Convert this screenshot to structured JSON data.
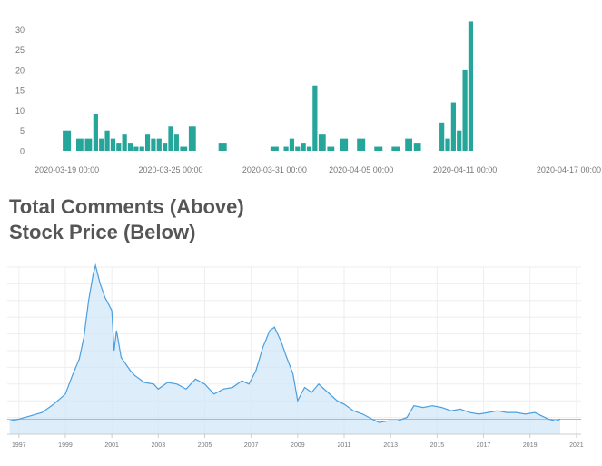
{
  "titles": {
    "line1": "Total Comments (Above)",
    "line2": "Stock Price (Below)"
  },
  "colors": {
    "bar": "#26a69a",
    "area_line": "#4a9fe0",
    "area_fill": "#cfe5f8",
    "grid": "#eeeeee",
    "text": "#777777",
    "title": "#555555"
  },
  "chart_data": [
    {
      "type": "bar",
      "x": [
        "2020-03-19",
        "2020-03-20",
        "2020-03-21",
        "2020-03-22",
        "2020-03-23",
        "2020-03-24",
        "2020-03-25",
        "2020-03-26",
        "2020-03-27",
        "2020-03-28",
        "2020-03-29",
        "2020-03-30",
        "2020-03-31",
        "2020-04-01",
        "2020-04-02",
        "2020-04-03",
        "2020-04-04",
        "2020-04-05",
        "2020-04-06",
        "2020-04-07",
        "2020-04-08",
        "2020-04-09",
        "2020-04-10",
        "2020-04-11",
        "2020-04-12",
        "2020-04-13",
        "2020-04-14",
        "2020-04-15",
        "2020-04-16",
        "2020-04-17"
      ],
      "x_tick_labels": [
        "2020-03-19 00:00",
        "2020-03-25 00:00",
        "2020-03-31 00:00",
        "2020-04-05 00:00",
        "2020-04-11 00:00",
        "2020-04-17 00:00"
      ],
      "x_tick_dates": [
        "2020-03-19",
        "2020-03-25",
        "2020-03-31",
        "2020-04-05",
        "2020-04-11",
        "2020-04-17"
      ],
      "y_ticks": [
        0,
        5,
        10,
        15,
        20,
        25,
        30
      ],
      "ylim": [
        0,
        33
      ],
      "x_domain": [
        "2020-03-18",
        "2020-04-18"
      ],
      "bars": [
        [
          "2020-03-19",
          5
        ],
        [
          "2020-03-20",
          3
        ],
        [
          "2020-03-20",
          3
        ],
        [
          "2020-03-21",
          9
        ],
        [
          "2020-03-21",
          3
        ],
        [
          "2020-03-21",
          5
        ],
        [
          "2020-03-22",
          3
        ],
        [
          "2020-03-22",
          2
        ],
        [
          "2020-03-22",
          4
        ],
        [
          "2020-03-23",
          2
        ],
        [
          "2020-03-23",
          1
        ],
        [
          "2020-03-23",
          1
        ],
        [
          "2020-03-24",
          4
        ],
        [
          "2020-03-24",
          3
        ],
        [
          "2020-03-24",
          3
        ],
        [
          "2020-03-25",
          2
        ],
        [
          "2020-03-25",
          6
        ],
        [
          "2020-03-25",
          4
        ],
        [
          "2020-03-26",
          1
        ],
        [
          "2020-03-26",
          6
        ],
        [
          "2020-03-28",
          2
        ],
        [
          "2020-03-31",
          1
        ],
        [
          "2020-04-01",
          1
        ],
        [
          "2020-04-01",
          3
        ],
        [
          "2020-04-01",
          1
        ],
        [
          "2020-04-02",
          2
        ],
        [
          "2020-04-02",
          1
        ],
        [
          "2020-04-02",
          16
        ],
        [
          "2020-04-03",
          4
        ],
        [
          "2020-04-03",
          1
        ],
        [
          "2020-04-04",
          3
        ],
        [
          "2020-04-05",
          3
        ],
        [
          "2020-04-06",
          1
        ],
        [
          "2020-04-07",
          1
        ],
        [
          "2020-04-08",
          3
        ],
        [
          "2020-04-08",
          2
        ],
        [
          "2020-04-10",
          7
        ],
        [
          "2020-04-10",
          3
        ],
        [
          "2020-04-10",
          12
        ],
        [
          "2020-04-11",
          5
        ],
        [
          "2020-04-11",
          20
        ],
        [
          "2020-04-11",
          32
        ]
      ],
      "grid": false
    },
    {
      "type": "area",
      "x_tick_labels": [
        "1997",
        "1999",
        "2001",
        "2003",
        "2005",
        "2007",
        "2009",
        "2011",
        "2013",
        "2015",
        "2017",
        "2019",
        "2021"
      ],
      "xlim": [
        1996.5,
        2021.2
      ],
      "ylim": [
        0,
        100
      ],
      "y_axis_labels": false,
      "grid": true,
      "baseline": 9,
      "points": [
        [
          1996.6,
          8
        ],
        [
          1997.0,
          9
        ],
        [
          1997.5,
          11
        ],
        [
          1998.0,
          13
        ],
        [
          1998.5,
          18
        ],
        [
          1999.0,
          24
        ],
        [
          1999.3,
          35
        ],
        [
          1999.6,
          45
        ],
        [
          1999.8,
          58
        ],
        [
          2000.0,
          80
        ],
        [
          2000.2,
          96
        ],
        [
          2000.3,
          101
        ],
        [
          2000.5,
          90
        ],
        [
          2000.7,
          82
        ],
        [
          2001.0,
          74
        ],
        [
          2001.1,
          50
        ],
        [
          2001.2,
          62
        ],
        [
          2001.4,
          46
        ],
        [
          2001.8,
          38
        ],
        [
          2002.0,
          35
        ],
        [
          2002.4,
          31
        ],
        [
          2002.8,
          30
        ],
        [
          2003.0,
          27
        ],
        [
          2003.4,
          31
        ],
        [
          2003.8,
          30
        ],
        [
          2004.2,
          27
        ],
        [
          2004.6,
          33
        ],
        [
          2005.0,
          30
        ],
        [
          2005.4,
          24
        ],
        [
          2005.8,
          27
        ],
        [
          2006.2,
          28
        ],
        [
          2006.6,
          32
        ],
        [
          2006.9,
          30
        ],
        [
          2007.2,
          38
        ],
        [
          2007.5,
          52
        ],
        [
          2007.8,
          62
        ],
        [
          2008.0,
          64
        ],
        [
          2008.3,
          55
        ],
        [
          2008.5,
          47
        ],
        [
          2008.8,
          36
        ],
        [
          2009.0,
          20
        ],
        [
          2009.3,
          28
        ],
        [
          2009.6,
          25
        ],
        [
          2009.9,
          30
        ],
        [
          2010.3,
          25
        ],
        [
          2010.7,
          20
        ],
        [
          2011.0,
          18
        ],
        [
          2011.4,
          14
        ],
        [
          2011.8,
          12
        ],
        [
          2012.2,
          9
        ],
        [
          2012.5,
          7
        ],
        [
          2012.9,
          8
        ],
        [
          2013.3,
          8
        ],
        [
          2013.7,
          10
        ],
        [
          2014.0,
          17
        ],
        [
          2014.4,
          16
        ],
        [
          2014.8,
          17
        ],
        [
          2015.2,
          16
        ],
        [
          2015.6,
          14
        ],
        [
          2016.0,
          15
        ],
        [
          2016.4,
          13
        ],
        [
          2016.8,
          12
        ],
        [
          2017.2,
          13
        ],
        [
          2017.6,
          14
        ],
        [
          2018.0,
          13
        ],
        [
          2018.4,
          13
        ],
        [
          2018.8,
          12
        ],
        [
          2019.2,
          13
        ],
        [
          2019.5,
          11
        ],
        [
          2019.8,
          9
        ],
        [
          2020.1,
          8
        ],
        [
          2020.3,
          9
        ]
      ]
    }
  ]
}
